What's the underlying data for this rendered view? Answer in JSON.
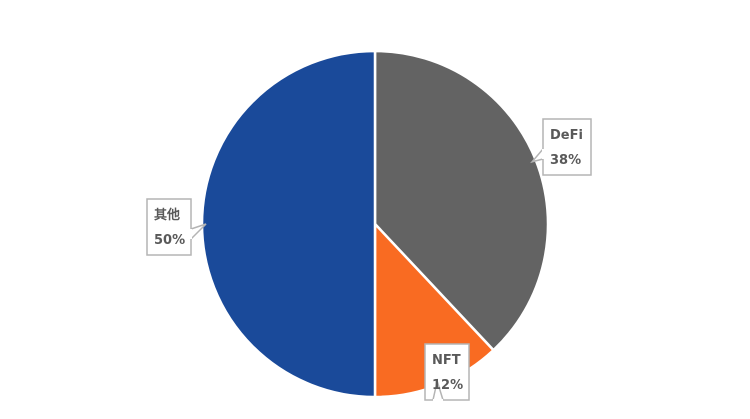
{
  "chart_data": {
    "type": "pie",
    "title": "",
    "slices": [
      {
        "label": "DeFi",
        "value": 38,
        "value_label": "38%",
        "color": "#636363"
      },
      {
        "label": "NFT",
        "value": 12,
        "value_label": "12%",
        "color": "#f96b22"
      },
      {
        "label": "其他",
        "value": 50,
        "value_label": "50%",
        "color": "#1a4a9a"
      }
    ],
    "start_angle": "12 o'clock",
    "direction": "clockwise",
    "data_labels": "callouts with category name and percentage"
  }
}
